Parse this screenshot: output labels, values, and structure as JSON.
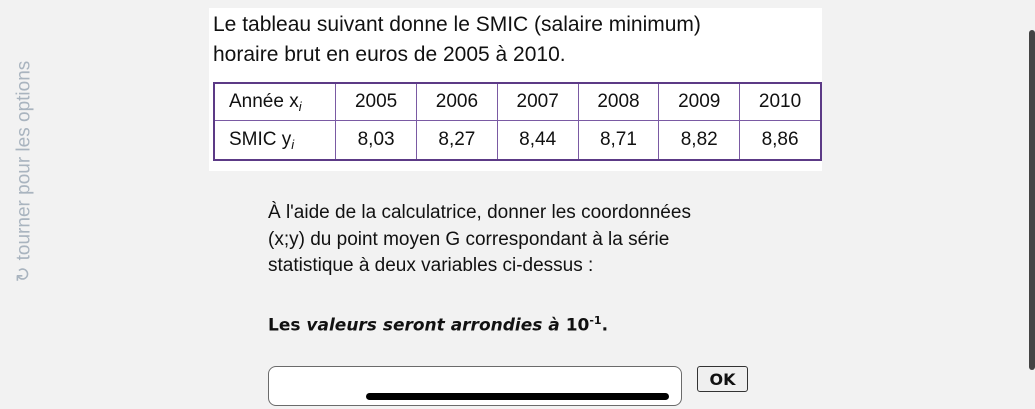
{
  "sidebar": {
    "rotate_label": "tourner pour les options",
    "rotate_icon": "rotate-icon"
  },
  "exercise": {
    "title_line1": "Le tableau suivant donne le SMIC (salaire minimum)",
    "title_line2": "horaire brut en euros de 2005 à 2010.",
    "table": {
      "row1_label": "Année x",
      "row1_sub": "i",
      "row2_label": "SMIC y",
      "row2_sub": "i",
      "years": [
        "2005",
        "2006",
        "2007",
        "2008",
        "2009",
        "2010"
      ],
      "smic": [
        "8,03",
        "8,27",
        "8,44",
        "8,71",
        "8,82",
        "8,86"
      ]
    },
    "question_line1": "À l'aide de la calculatrice, donner les coordonnées",
    "question_line2": "(x;y) du point moyen G correspondant à la série",
    "question_line3": "statistique à deux variables ci-dessus :",
    "note_prefix": "Les",
    "note_italic": "valeurs seront arrondies à",
    "note_base": "10",
    "note_exp": "-1",
    "note_suffix": "."
  },
  "answer": {
    "value": "",
    "ok_label": "OK"
  }
}
